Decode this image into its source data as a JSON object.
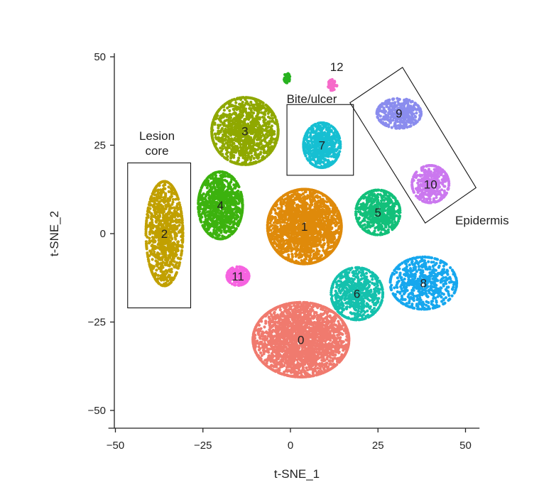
{
  "chart_data": {
    "type": "scatter",
    "xlabel": "t-SNE_1",
    "ylabel": "t-SNE_2",
    "xlim": [
      -52,
      54
    ],
    "ylim": [
      -55,
      51
    ],
    "xticks": [
      -50,
      -25,
      0,
      25,
      50
    ],
    "yticks": [
      -50,
      -25,
      0,
      25,
      50
    ],
    "tick_labels": {
      "x": [
        "−50",
        "−25",
        "0",
        "25",
        "50"
      ],
      "y": [
        "−50",
        "−25",
        "0",
        "25",
        "50"
      ]
    },
    "grid": false,
    "legend": "none",
    "clusters": [
      {
        "label": "0",
        "color": "#f07a6e",
        "center": [
          3,
          -30
        ],
        "spread": [
          13,
          10
        ],
        "count": 2600
      },
      {
        "label": "1",
        "color": "#df8a0a",
        "center": [
          4,
          2
        ],
        "spread": [
          10,
          10
        ],
        "count": 2100
      },
      {
        "label": "2",
        "color": "#c1a000",
        "center": [
          -36,
          0
        ],
        "spread": [
          5,
          14
        ],
        "count": 1000
      },
      {
        "label": "3",
        "color": "#8fa800",
        "center": [
          -13,
          29
        ],
        "spread": [
          9,
          9
        ],
        "count": 1200
      },
      {
        "label": "4",
        "color": "#3cb20e",
        "center": [
          -20,
          8
        ],
        "spread": [
          6,
          9
        ],
        "count": 1000
      },
      {
        "label": "5",
        "color": "#12c07a",
        "center": [
          25,
          6
        ],
        "spread": [
          6,
          6
        ],
        "count": 650
      },
      {
        "label": "6",
        "color": "#14c1ad",
        "center": [
          19,
          -17
        ],
        "spread": [
          7,
          7
        ],
        "count": 650
      },
      {
        "label": "7",
        "color": "#16bfd2",
        "center": [
          9,
          25
        ],
        "spread": [
          5,
          6
        ],
        "count": 650
      },
      {
        "label": "8",
        "color": "#16a7ee",
        "center": [
          38,
          -14
        ],
        "spread": [
          9,
          7
        ],
        "count": 650
      },
      {
        "label": "9",
        "color": "#8a8cee",
        "center": [
          31,
          34
        ],
        "spread": [
          6,
          4
        ],
        "count": 400
      },
      {
        "label": "10",
        "color": "#cb78ef",
        "center": [
          40,
          14
        ],
        "spread": [
          5,
          5
        ],
        "count": 420
      },
      {
        "label": "11",
        "color": "#f663e0",
        "center": [
          -15,
          -12
        ],
        "spread": [
          3,
          2.5
        ],
        "count": 180
      },
      {
        "label": "12",
        "color": "#f66ac9",
        "center": [
          12,
          42
        ],
        "spread": [
          1.2,
          1.5
        ],
        "count": 40
      },
      {
        "label": "",
        "color": "#27b21f",
        "center": [
          -1,
          44
        ],
        "spread": [
          0.8,
          1.3
        ],
        "count": 40
      }
    ],
    "annotations": [
      {
        "text_lines": [
          "Lesion",
          "core"
        ],
        "rect_corners": [
          [
            -46.5,
            20
          ],
          [
            -28.5,
            -21
          ]
        ]
      },
      {
        "text_lines": [
          "Bite/ulcer"
        ],
        "rect_corners": [
          [
            -1,
            36.5
          ],
          [
            18,
            16.5
          ]
        ]
      },
      {
        "text_lines": [
          "Epidermis"
        ],
        "rect_corners": [
          [
            17,
            37
          ],
          [
            32,
            47
          ],
          [
            53,
            13
          ],
          [
            38.5,
            3
          ]
        ]
      }
    ]
  }
}
